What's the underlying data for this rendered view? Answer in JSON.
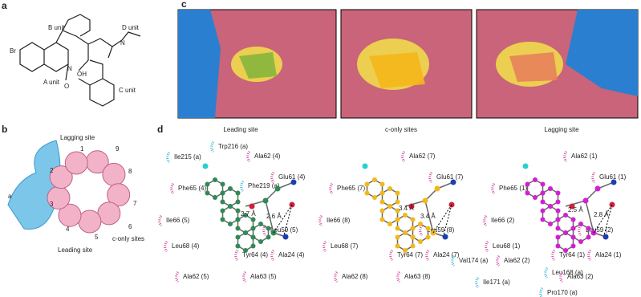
{
  "panel_labels": [
    "a",
    "b",
    "c",
    "d"
  ],
  "panel_a": {
    "texts": [
      "B unit",
      "D unit",
      "Br",
      "N",
      "N",
      "A unit",
      "OH",
      "O",
      "C unit"
    ]
  },
  "panel_b": {
    "lagging": "Lagging site",
    "subunits": [
      "1",
      "2",
      "3",
      "4",
      "5",
      "6",
      "7",
      "8",
      "9"
    ],
    "chain": "a",
    "leading": "Leading site",
    "c_only": "c-only sites"
  },
  "panel_d": [
    {
      "title": "Leading site",
      "residues": [
        "Ile215 (a)",
        "Trp216 (a)",
        "Ala62 (4)",
        "Phe219 (a)",
        "Glu61 (4)",
        "Phe65 (4)",
        "Ile66 (5)",
        "Leu59 (5)",
        "Leu68 (4)",
        "Tyr64 (4)",
        "Ala24 (4)",
        "Ala62 (5)",
        "Ala63 (5)"
      ],
      "distances": [
        "2.7 Å",
        "2.6 Å"
      ]
    },
    {
      "title": "c-only sites",
      "residues": [
        "Ala62 (7)",
        "Glu61 (7)",
        "Phe65 (7)",
        "Ile66 (8)",
        "Leu59 (8)",
        "Leu68 (7)",
        "Tyr64 (7)",
        "Ala24 (7)",
        "Ala62 (8)",
        "Ala63 (8)"
      ],
      "distances": [
        "3.4 Å",
        "3.4 Å"
      ]
    },
    {
      "title": "Lagging site",
      "residues": [
        "Ala62 (1)",
        "Glu61 (1)",
        "Phe65 (1)",
        "Ile66 (2)",
        "Leu59 (2)",
        "Leu68 (1)",
        "Tyr64 (1)",
        "Ala24 (1)",
        "Val174 (a)",
        "Ala62 (2)",
        "Leu168 (a)",
        "Ala63 (2)",
        "Ile171 (a)",
        "Pro170 (a)"
      ],
      "distances": [
        "2.5 Å",
        "2.8 Å"
      ]
    }
  ]
}
